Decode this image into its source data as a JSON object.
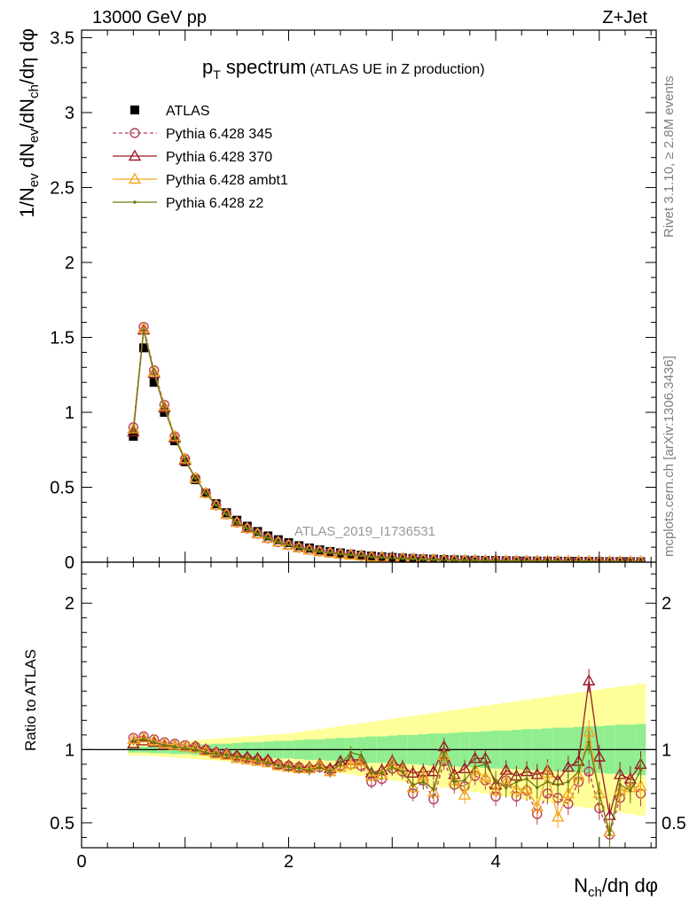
{
  "header": {
    "left": "13000 GeV pp",
    "right": "Z+Jet"
  },
  "side_labels": {
    "rivet": "Rivet 3.1.10, ≥ 2.8M events",
    "source": "mcplots.cern.ch [arXiv:1306.3436]"
  },
  "chart_data": [
    {
      "type": "scatter",
      "title_main": "p",
      "title_main_sub": "T",
      "title_main_rest": " spectrum",
      "title_paren": "(ATLAS UE in Z production)",
      "watermark": "ATLAS_2019_I1736531",
      "ylabel": "1/N_ev dN_ev/dN_ch/dη dφ",
      "ylabel_parts": [
        "1/N",
        "ev",
        " dN",
        "ev",
        "/dN",
        "ch",
        "/dη dφ"
      ],
      "xlim": [
        0,
        5.55
      ],
      "ylim": [
        0,
        3.55
      ],
      "yticks": [
        0,
        0.5,
        1,
        1.5,
        2,
        2.5,
        3,
        3.5
      ],
      "ytick_labels": [
        "0",
        "0.5",
        "1",
        "1.5",
        "2",
        "2.5",
        "3",
        "3.5"
      ],
      "legend_position": "top-left",
      "x": [
        0.5,
        0.6,
        0.7,
        0.8,
        0.9,
        1.0,
        1.1,
        1.2,
        1.3,
        1.4,
        1.5,
        1.6,
        1.7,
        1.8,
        1.9,
        2.0,
        2.1,
        2.2,
        2.3,
        2.4,
        2.5,
        2.6,
        2.7,
        2.8,
        2.9,
        3.0,
        3.1,
        3.2,
        3.3,
        3.4,
        3.5,
        3.6,
        3.7,
        3.8,
        3.9,
        4.0,
        4.1,
        4.2,
        4.3,
        4.4,
        4.5,
        4.6,
        4.7,
        4.8,
        4.9,
        5.0,
        5.1,
        5.2,
        5.3,
        5.4
      ],
      "series": [
        {
          "name": "ATLAS",
          "color": "#000000",
          "marker": "square",
          "values": [
            0.84,
            1.43,
            1.2,
            1.0,
            0.81,
            0.67,
            0.55,
            0.46,
            0.39,
            0.33,
            0.28,
            0.24,
            0.205,
            0.175,
            0.15,
            0.13,
            0.11,
            0.095,
            0.082,
            0.071,
            0.062,
            0.054,
            0.047,
            0.041,
            0.036,
            0.032,
            0.028,
            0.025,
            0.022,
            0.02,
            0.018,
            0.016,
            0.014,
            0.013,
            0.012,
            0.011,
            0.01,
            0.009,
            0.008,
            0.0075,
            0.007,
            0.0065,
            0.006,
            0.0055,
            0.005,
            0.0045,
            0.004,
            0.0037,
            0.0034,
            0.003
          ]
        },
        {
          "name": "Pythia 6.428 345",
          "color": "#b5405a",
          "marker": "circle-open",
          "dashed": true,
          "values": [
            0.9,
            1.57,
            1.28,
            1.05,
            0.84,
            0.69,
            0.56,
            0.46,
            0.38,
            0.32,
            0.265,
            0.225,
            0.19,
            0.16,
            0.134,
            0.115,
            0.097,
            0.083,
            0.072,
            0.063,
            0.055,
            0.049,
            0.042,
            0.035,
            0.031,
            0.028,
            0.025,
            0.022,
            0.019,
            0.017,
            0.015,
            0.013,
            0.012,
            0.011,
            0.01,
            0.009,
            0.008,
            0.0075,
            0.007,
            0.0065,
            0.006,
            0.0055,
            0.005,
            0.0045,
            0.004,
            0.0037,
            0.0034,
            0.003,
            0.0027,
            0.0025
          ]
        },
        {
          "name": "Pythia 6.428 370",
          "color": "#9a1c28",
          "marker": "triangle-open",
          "values": [
            0.87,
            1.55,
            1.26,
            1.03,
            0.83,
            0.68,
            0.56,
            0.46,
            0.38,
            0.32,
            0.27,
            0.23,
            0.19,
            0.16,
            0.135,
            0.115,
            0.097,
            0.083,
            0.072,
            0.063,
            0.055,
            0.049,
            0.043,
            0.036,
            0.032,
            0.028,
            0.025,
            0.022,
            0.019,
            0.017,
            0.015,
            0.014,
            0.012,
            0.011,
            0.01,
            0.009,
            0.008,
            0.0075,
            0.007,
            0.0065,
            0.006,
            0.0055,
            0.005,
            0.0045,
            0.004,
            0.0037,
            0.0034,
            0.003,
            0.0027,
            0.0025
          ]
        },
        {
          "name": "Pythia 6.428 ambt1",
          "color": "#f5a623",
          "marker": "triangle-open",
          "values": [
            0.89,
            1.56,
            1.27,
            1.04,
            0.84,
            0.69,
            0.56,
            0.46,
            0.38,
            0.32,
            0.265,
            0.225,
            0.19,
            0.16,
            0.134,
            0.114,
            0.096,
            0.082,
            0.071,
            0.062,
            0.054,
            0.048,
            0.042,
            0.035,
            0.031,
            0.027,
            0.024,
            0.021,
            0.018,
            0.016,
            0.014,
            0.013,
            0.012,
            0.011,
            0.01,
            0.009,
            0.008,
            0.0075,
            0.007,
            0.0065,
            0.006,
            0.0055,
            0.005,
            0.0045,
            0.004,
            0.0037,
            0.0034,
            0.003,
            0.0027,
            0.0025
          ]
        },
        {
          "name": "Pythia 6.428 z2",
          "color": "#6b7a0f",
          "marker": "dot",
          "values": [
            0.88,
            1.55,
            1.26,
            1.03,
            0.83,
            0.68,
            0.56,
            0.46,
            0.38,
            0.32,
            0.265,
            0.225,
            0.19,
            0.16,
            0.134,
            0.114,
            0.096,
            0.082,
            0.071,
            0.062,
            0.054,
            0.048,
            0.042,
            0.035,
            0.031,
            0.027,
            0.024,
            0.021,
            0.018,
            0.016,
            0.014,
            0.013,
            0.012,
            0.011,
            0.01,
            0.009,
            0.008,
            0.0075,
            0.007,
            0.0065,
            0.006,
            0.0055,
            0.005,
            0.0045,
            0.004,
            0.0037,
            0.0034,
            0.003,
            0.0027,
            0.0025
          ]
        }
      ]
    },
    {
      "type": "scatter",
      "ylabel": "Ratio to ATLAS",
      "xlabel_parts": [
        "N",
        "ch",
        "/dη dφ"
      ],
      "xlim": [
        0,
        5.55
      ],
      "ylim": [
        0.33,
        2.28
      ],
      "xticks": [
        0,
        2,
        4
      ],
      "xtick_labels": [
        "0",
        "2",
        "4"
      ],
      "yticks": [
        0.5,
        1,
        2
      ],
      "ytick_labels": [
        "0.5",
        "1",
        "2"
      ],
      "reference_line": 1,
      "band_edges": [
        0.45,
        0.55,
        0.65,
        0.75,
        0.85,
        0.95,
        1.05,
        1.15,
        1.25,
        1.35,
        1.45,
        1.55,
        1.65,
        1.75,
        1.85,
        1.95,
        2.05,
        2.15,
        2.25,
        2.35,
        2.45,
        2.55,
        2.65,
        2.75,
        2.85,
        2.95,
        3.05,
        3.15,
        3.25,
        3.35,
        3.45,
        3.55,
        3.65,
        3.75,
        3.85,
        3.95,
        4.05,
        4.15,
        4.25,
        4.35,
        4.45,
        4.55,
        4.65,
        4.75,
        4.85,
        4.95,
        5.05,
        5.15,
        5.25,
        5.35,
        5.45
      ],
      "bands": {
        "stat_color": "#90ee90",
        "total_color": "#ffff99",
        "stat_halfwidth": [
          0.02,
          0.02,
          0.025,
          0.025,
          0.03,
          0.03,
          0.035,
          0.035,
          0.04,
          0.04,
          0.045,
          0.05,
          0.05,
          0.055,
          0.06,
          0.06,
          0.065,
          0.07,
          0.07,
          0.075,
          0.08,
          0.08,
          0.085,
          0.09,
          0.09,
          0.095,
          0.1,
          0.1,
          0.105,
          0.11,
          0.11,
          0.115,
          0.12,
          0.12,
          0.125,
          0.13,
          0.13,
          0.135,
          0.14,
          0.14,
          0.145,
          0.15,
          0.15,
          0.155,
          0.16,
          0.16,
          0.165,
          0.17,
          0.17,
          0.175
        ],
        "total_halfwidth": [
          0.04,
          0.04,
          0.045,
          0.05,
          0.055,
          0.06,
          0.065,
          0.07,
          0.075,
          0.08,
          0.085,
          0.09,
          0.095,
          0.1,
          0.105,
          0.11,
          0.12,
          0.13,
          0.14,
          0.15,
          0.16,
          0.17,
          0.18,
          0.19,
          0.2,
          0.21,
          0.22,
          0.23,
          0.24,
          0.25,
          0.26,
          0.27,
          0.28,
          0.29,
          0.3,
          0.31,
          0.32,
          0.33,
          0.34,
          0.35,
          0.36,
          0.37,
          0.38,
          0.39,
          0.4,
          0.41,
          0.42,
          0.43,
          0.44,
          0.45
        ]
      },
      "series": [
        {
          "name": "Pythia 6.428 345",
          "color": "#b5405a",
          "marker": "circle-open",
          "dashed": true,
          "values": [
            1.08,
            1.09,
            1.07,
            1.05,
            1.04,
            1.03,
            1.02,
            1.0,
            0.98,
            0.97,
            0.95,
            0.94,
            0.93,
            0.92,
            0.9,
            0.89,
            0.88,
            0.87,
            0.88,
            0.86,
            0.89,
            0.9,
            0.89,
            0.78,
            0.8,
            0.87,
            0.85,
            0.7,
            0.79,
            0.66,
            0.92,
            0.76,
            0.75,
            0.82,
            0.79,
            0.68,
            0.79,
            0.68,
            0.72,
            0.56,
            0.7,
            0.67,
            0.63,
            0.78,
            0.85,
            0.6,
            0.42,
            0.67,
            0.77,
            0.7
          ]
        },
        {
          "name": "Pythia 6.428 370",
          "color": "#9a1c28",
          "marker": "triangle-open",
          "values": [
            1.04,
            1.06,
            1.05,
            1.03,
            1.03,
            1.02,
            1.02,
            1.0,
            0.98,
            0.97,
            0.96,
            0.95,
            0.94,
            0.93,
            0.9,
            0.89,
            0.88,
            0.88,
            0.9,
            0.87,
            0.92,
            0.93,
            0.93,
            0.84,
            0.86,
            0.92,
            0.88,
            0.84,
            0.85,
            0.85,
            1.02,
            0.83,
            0.87,
            0.94,
            0.94,
            0.76,
            0.86,
            0.82,
            0.85,
            0.83,
            0.86,
            0.79,
            0.88,
            0.92,
            1.47,
            0.95,
            0.55,
            0.83,
            0.8,
            0.9
          ]
        },
        {
          "name": "Pythia 6.428 ambt1",
          "color": "#f5a623",
          "marker": "triangle-open",
          "values": [
            1.07,
            1.08,
            1.06,
            1.04,
            1.03,
            1.02,
            1.01,
            0.99,
            0.97,
            0.96,
            0.94,
            0.93,
            0.92,
            0.91,
            0.89,
            0.88,
            0.87,
            0.87,
            0.89,
            0.85,
            0.88,
            0.9,
            0.92,
            0.82,
            0.83,
            0.9,
            0.86,
            0.74,
            0.82,
            0.71,
            0.96,
            0.79,
            0.69,
            0.86,
            0.81,
            0.72,
            0.78,
            0.73,
            0.73,
            0.61,
            0.84,
            0.54,
            0.7,
            0.82,
            1.12,
            0.7,
            0.44,
            0.72,
            0.74,
            0.75
          ]
        },
        {
          "name": "Pythia 6.428 z2",
          "color": "#6b7a0f",
          "marker": "dot",
          "values": [
            1.06,
            1.07,
            1.05,
            1.03,
            1.02,
            1.01,
            1.0,
            0.98,
            0.97,
            0.96,
            0.95,
            0.94,
            0.93,
            0.91,
            0.89,
            0.88,
            0.87,
            0.86,
            0.88,
            0.85,
            0.9,
            0.98,
            0.96,
            0.84,
            0.84,
            0.88,
            0.85,
            0.76,
            0.78,
            0.73,
            0.98,
            0.78,
            0.79,
            0.88,
            0.9,
            0.79,
            0.74,
            0.78,
            0.8,
            0.74,
            0.78,
            0.76,
            0.78,
            0.85,
            1.05,
            0.7,
            0.42,
            0.76,
            0.72,
            0.86
          ]
        }
      ]
    }
  ]
}
